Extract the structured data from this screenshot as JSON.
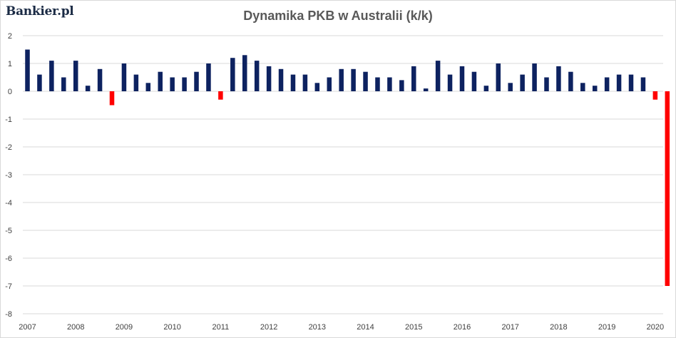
{
  "logo_text": "Bankier.pl",
  "chart_data": {
    "type": "bar",
    "title": "Dynamika PKB w Australii (k/k)",
    "xlabel": "",
    "ylabel": "",
    "ylim": [
      -8,
      2
    ],
    "y_ticks": [
      "2",
      "1",
      "0",
      "-1",
      "-2",
      "-3",
      "-4",
      "-5",
      "-6",
      "-7",
      "-8"
    ],
    "x_tick_labels": [
      "2007",
      "2008",
      "2009",
      "2010",
      "2011",
      "2012",
      "2013",
      "2014",
      "2015",
      "2016",
      "2017",
      "2018",
      "2019",
      "2020"
    ],
    "quarters_per_year": 4,
    "values": [
      1.5,
      0.6,
      1.1,
      0.5,
      1.1,
      0.2,
      0.8,
      -0.5,
      1.0,
      0.6,
      0.3,
      0.7,
      0.5,
      0.5,
      0.7,
      1.0,
      -0.3,
      1.2,
      1.3,
      1.1,
      0.9,
      0.8,
      0.6,
      0.6,
      0.3,
      0.5,
      0.8,
      0.8,
      0.7,
      0.5,
      0.5,
      0.4,
      0.9,
      0.1,
      1.1,
      0.6,
      0.9,
      0.7,
      0.2,
      1.0,
      0.3,
      0.6,
      1.0,
      0.5,
      0.9,
      0.7,
      0.3,
      0.2,
      0.5,
      0.6,
      0.6,
      0.5,
      -0.3,
      -7.0
    ],
    "colors": {
      "positive": "#0d2260",
      "negative": "#ff0000",
      "gridline": "#d9d9d9",
      "text": "#404040"
    },
    "grid": true,
    "legend": "none"
  }
}
